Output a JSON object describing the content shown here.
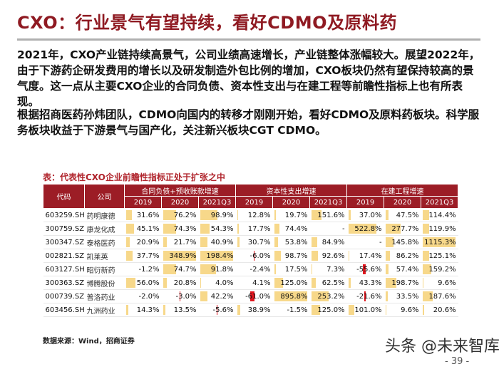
{
  "title": "CXO：行业景气有望持续，看好CDMO及原料药",
  "paragraphs": [
    "2021年，CXO产业链持续高景气，公司业绩高速增长，产业链整体涨幅较大。展望2022年，由于下游药企研发费用的增长以及研发制造外包比例的增加，CXO板块仍然有望保持较高的景气度。这一点从主要CXO企业的合同负债、资本性支出与在建工程等前瞻性指标上也有所表现。",
    "根据招商医药孙炜团队，CDMO向国内的转移才刚刚开始，看好CDMO及原料药板块。科学服务板块收益于下游景气与国产化，关注新兴板块CGT CDMO。"
  ],
  "table": {
    "title": "表：代表性CXO企业前瞻性指标正处于扩张之中",
    "col_code": "代码",
    "col_company": "公司",
    "groups": [
      "合同负债+预收账款增速",
      "资本性支出增速",
      "在建工程增速"
    ],
    "years": [
      "2019",
      "2020",
      "2021Q3"
    ],
    "rows": [
      {
        "code": "603259.SH",
        "name": "药明康德",
        "v": [
          "31.6%",
          "76.2%",
          "98.9%",
          "12.8%",
          "19.7%",
          "151.6%",
          "37.0%",
          "47.5%",
          "114.4%"
        ]
      },
      {
        "code": "300759.SZ",
        "name": "康龙化成",
        "v": [
          "45.1%",
          "74.3%",
          "54.3%",
          "17.7%",
          "74.4%",
          "-",
          "522.8%",
          "277.7%",
          "119.9%"
        ]
      },
      {
        "code": "300347.SZ",
        "name": "泰格医药",
        "v": [
          "20.9%",
          "21.7%",
          "40.9%",
          "30.7%",
          "53.8%",
          "84.9%",
          "-",
          "145.8%",
          "1115.3%"
        ]
      },
      {
        "code": "002821.SZ",
        "name": "凯莱英",
        "v": [
          "37.7%",
          "348.9%",
          "198.4%",
          "-6.0%",
          "98.7%",
          "92.6%",
          "17.4%",
          "86.2%",
          "125.1%"
        ]
      },
      {
        "code": "603127.SH",
        "name": "昭衍新药",
        "v": [
          "-1.2%",
          "74.7%",
          "91.8%",
          "-2.4%",
          "17.5%",
          "7.3%",
          "-55.6%",
          "57.4%",
          "159.2%"
        ]
      },
      {
        "code": "300363.SZ",
        "name": "博腾股份",
        "v": [
          "56.0%",
          "20.8%",
          "4.0%",
          "4.1%",
          "125.0%",
          "62.5%",
          "43.3%",
          "198.7%",
          "9.6%"
        ]
      },
      {
        "code": "000739.SZ",
        "name": "普洛药业",
        "v": [
          "-2.0%",
          "-3.0%",
          "42.2%",
          "-61.0%",
          "895.8%",
          "253.2%",
          "-21.6%",
          "33.5%",
          "187.6%"
        ]
      },
      {
        "code": "603456.SH",
        "name": "九洲药业",
        "v": [
          "14.3%",
          "13.5%",
          "-5.6%",
          "38.9%",
          "-1.5%",
          "125.0%",
          "101.0%",
          "9.6%",
          "20.6%"
        ]
      }
    ]
  },
  "source": "数据来源：Wind，招商证券",
  "watermark": "头条 @未来智库",
  "page_number": "- 39 -",
  "colors": {
    "accent": "#8f1a22",
    "header_bg": "#9c1d26",
    "bar_pos": "#f7d88a",
    "bar_neg": "#e0161e"
  }
}
